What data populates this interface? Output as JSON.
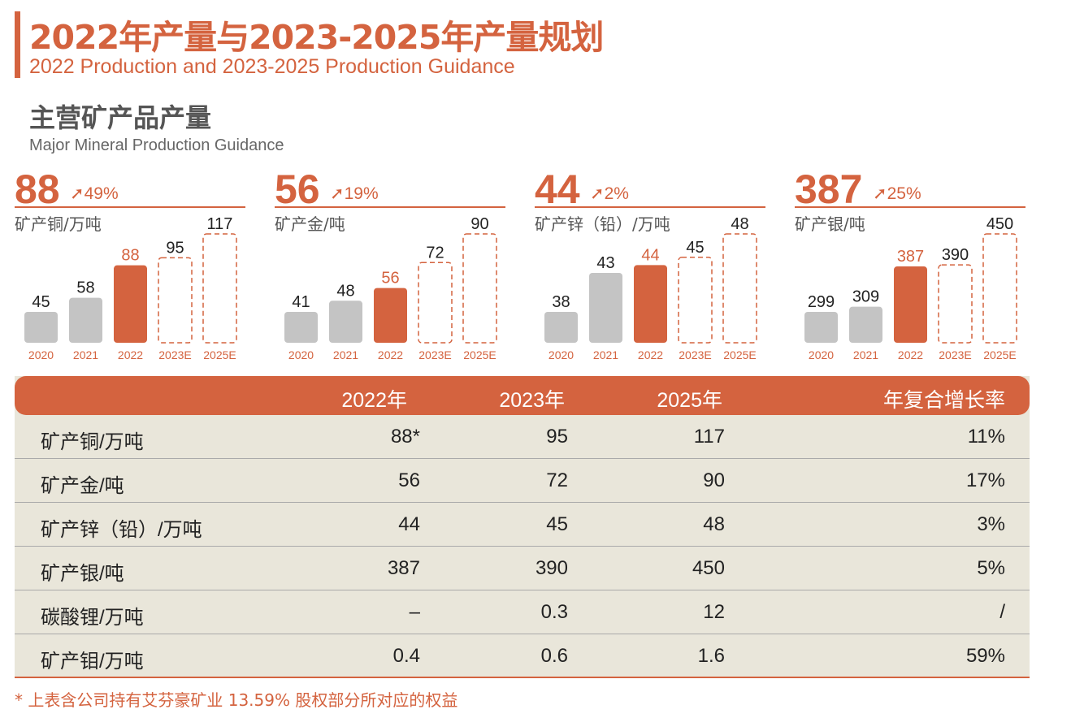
{
  "header": {
    "title": "2022年产量与2023-2025年产量规划",
    "subtitle": "2022 Production and 2023-2025 Production Guidance"
  },
  "section": {
    "title": "主营矿产品产量",
    "subtitle": "Major Mineral Production Guidance"
  },
  "colors": {
    "accent": "#d4633f",
    "actual": "#c4c4c4",
    "table_bg": "#e9e6da"
  },
  "chart_data": [
    {
      "type": "bar",
      "headline": "88",
      "growth": "49%",
      "unit_label": "矿产铜/万吨",
      "categories": [
        "2020",
        "2021",
        "2022",
        "2023E",
        "2025E"
      ],
      "values": [
        45,
        58,
        88,
        95,
        117
      ],
      "value_labels": [
        "45",
        "58",
        "88",
        "95",
        "117"
      ],
      "styles": [
        "actual",
        "actual",
        "highlight",
        "forecast",
        "forecast"
      ]
    },
    {
      "type": "bar",
      "headline": "56",
      "growth": "19%",
      "unit_label": "矿产金/吨",
      "categories": [
        "2020",
        "2021",
        "2022",
        "2023E",
        "2025E"
      ],
      "values": [
        41,
        48,
        56,
        72,
        90
      ],
      "value_labels": [
        "41",
        "48",
        "56",
        "72",
        "90"
      ],
      "styles": [
        "actual",
        "actual",
        "highlight",
        "forecast",
        "forecast"
      ]
    },
    {
      "type": "bar",
      "headline": "44",
      "growth": "2%",
      "unit_label": "矿产锌（铅）/万吨",
      "categories": [
        "2020",
        "2021",
        "2022",
        "2023E",
        "2025E"
      ],
      "values": [
        38,
        43,
        44,
        45,
        48
      ],
      "value_labels": [
        "38",
        "43",
        "44",
        "45",
        "48"
      ],
      "styles": [
        "actual",
        "actual",
        "highlight",
        "forecast",
        "forecast"
      ]
    },
    {
      "type": "bar",
      "headline": "387",
      "growth": "25%",
      "unit_label": "矿产银/吨",
      "categories": [
        "2020",
        "2021",
        "2022",
        "2023E",
        "2025E"
      ],
      "values": [
        299,
        309,
        387,
        390,
        450
      ],
      "value_labels": [
        "299",
        "309",
        "387",
        "390",
        "450"
      ],
      "styles": [
        "actual",
        "actual",
        "highlight",
        "forecast",
        "forecast"
      ]
    }
  ],
  "table": {
    "headers": [
      "",
      "2022年",
      "2023年",
      "2025年",
      "年复合增长率"
    ],
    "rows": [
      [
        "矿产铜/万吨",
        "88*",
        "95",
        "117",
        "11%"
      ],
      [
        "矿产金/吨",
        "56",
        "72",
        "90",
        "17%"
      ],
      [
        "矿产锌（铅）/万吨",
        "44",
        "45",
        "48",
        "3%"
      ],
      [
        "矿产银/吨",
        "387",
        "390",
        "450",
        "5%"
      ],
      [
        "碳酸锂/万吨",
        "–",
        "0.3",
        "12",
        "/"
      ],
      [
        "矿产钼/万吨",
        "0.4",
        "0.6",
        "1.6",
        "59%"
      ]
    ]
  },
  "footnote": "* 上表含公司持有艾芬豪矿业 13.59% 股权部分所对应的权益"
}
